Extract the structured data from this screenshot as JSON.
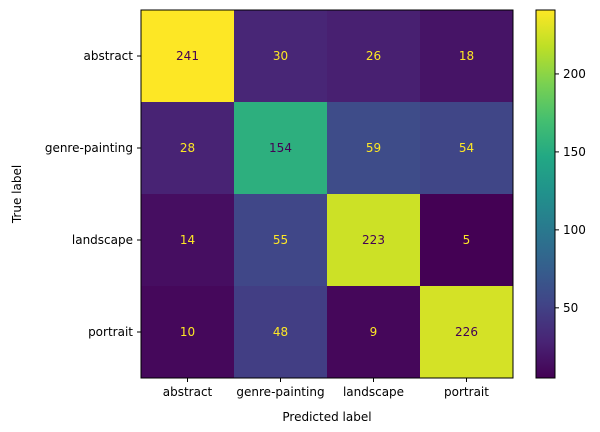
{
  "chart_data": {
    "type": "heatmap",
    "title": "",
    "xlabel": "Predicted label",
    "ylabel": "True label",
    "x_categories": [
      "abstract",
      "genre-painting",
      "landscape",
      "portrait"
    ],
    "y_categories": [
      "abstract",
      "genre-painting",
      "landscape",
      "portrait"
    ],
    "values": [
      [
        241,
        30,
        26,
        18
      ],
      [
        28,
        154,
        59,
        54
      ],
      [
        14,
        55,
        223,
        5
      ],
      [
        10,
        48,
        9,
        226
      ]
    ],
    "colormap": "viridis",
    "value_range": [
      5,
      241
    ],
    "colorbar_ticks": [
      50,
      100,
      150,
      200
    ],
    "text_color_light": "#fde725",
    "text_color_dark": "#440154"
  }
}
